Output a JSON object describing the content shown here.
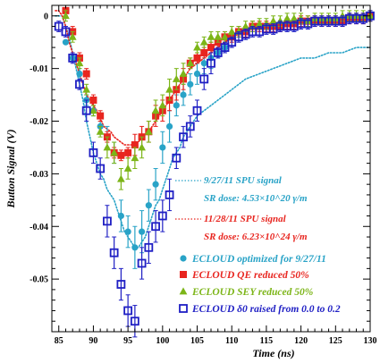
{
  "chart_data": {
    "type": "scatter",
    "title": "",
    "xlabel": "Time (ns)",
    "ylabel": "Button Signal (V)",
    "xlim": [
      84,
      130
    ],
    "ylim": [
      -0.06,
      0.002
    ],
    "x_ticks": [
      "85",
      "90",
      "95",
      "100",
      "105",
      "110",
      "115",
      "120",
      "125",
      "130"
    ],
    "y_ticks": [
      "0",
      "-0.01",
      "-0.02",
      "-0.03",
      "-0.04",
      "-0.05"
    ],
    "grid": false,
    "legend_placement": "bottom-right",
    "annotations": [
      {
        "id": "sru-0927",
        "text": "9/27/11 SPU signal",
        "color": "#29a3c7"
      },
      {
        "id": "dose-0927",
        "text": "SR dose: 4.53×10^20 γ/m",
        "color": "#29a3c7"
      },
      {
        "id": "sru-1128",
        "text": "11/28/11 SPU signal",
        "color": "#e8251f"
      },
      {
        "id": "dose-1128",
        "text": "SR dose: 6.23×10^24 γ/m",
        "color": "#e8251f"
      }
    ],
    "lines": [
      {
        "color": "#29a3c7",
        "style": "dotted",
        "x": [
          84.5,
          85,
          85.5,
          86,
          86.5,
          87,
          87.5,
          88,
          88.5,
          89,
          89.5,
          90,
          90.5,
          91,
          91.5,
          92,
          92.5,
          93,
          93.5,
          94,
          94.5,
          95,
          95.5,
          96,
          96.5,
          97,
          97.5,
          98,
          98.5,
          99,
          99.5,
          100,
          100.5,
          101,
          101.5,
          102,
          102.5,
          103,
          103.5,
          104,
          104.5,
          105,
          106,
          107,
          108,
          109,
          110,
          112,
          114,
          116,
          118,
          120,
          122,
          124,
          126,
          128,
          130
        ],
        "y": [
          0,
          0,
          0,
          -0.002,
          -0.004,
          -0.007,
          -0.01,
          -0.013,
          -0.016,
          -0.02,
          -0.023,
          -0.026,
          -0.028,
          -0.03,
          -0.031,
          -0.033,
          -0.034,
          -0.035,
          -0.037,
          -0.039,
          -0.041,
          -0.042,
          -0.043,
          -0.044,
          -0.044,
          -0.043,
          -0.042,
          -0.04,
          -0.038,
          -0.036,
          -0.035,
          -0.033,
          -0.031,
          -0.029,
          -0.027,
          -0.026,
          -0.025,
          -0.023,
          -0.022,
          -0.021,
          -0.02,
          -0.019,
          -0.018,
          -0.017,
          -0.016,
          -0.015,
          -0.014,
          -0.012,
          -0.011,
          -0.01,
          -0.009,
          -0.008,
          -0.008,
          -0.007,
          -0.007,
          -0.006,
          -0.006
        ]
      },
      {
        "color": "#e8251f",
        "style": "dotted",
        "x": [
          84.5,
          85,
          85.5,
          86,
          86.5,
          87,
          87.5,
          88,
          88.5,
          89,
          89.5,
          90,
          90.5,
          91,
          91.5,
          92,
          92.5,
          93,
          93.5,
          94,
          94.5,
          95,
          95.5,
          96,
          96.5,
          97,
          97.5,
          98,
          98.5,
          99,
          99.5,
          100,
          100.5,
          101,
          101.5,
          102,
          103,
          104,
          105,
          106,
          107,
          108,
          109,
          110,
          112,
          114,
          116,
          118,
          120,
          122,
          124,
          126,
          128,
          130
        ],
        "y": [
          0.001,
          0.001,
          0,
          -0.002,
          -0.005,
          -0.007,
          -0.009,
          -0.011,
          -0.013,
          -0.015,
          -0.016,
          -0.017,
          -0.018,
          -0.0195,
          -0.021,
          -0.0215,
          -0.022,
          -0.023,
          -0.0235,
          -0.024,
          -0.0245,
          -0.0245,
          -0.0245,
          -0.024,
          -0.024,
          -0.023,
          -0.0225,
          -0.022,
          -0.021,
          -0.02,
          -0.019,
          -0.018,
          -0.017,
          -0.016,
          -0.015,
          -0.014,
          -0.012,
          -0.01,
          -0.009,
          -0.008,
          -0.007,
          -0.006,
          -0.005,
          -0.004,
          -0.003,
          -0.002,
          -0.002,
          -0.002,
          -0.001,
          -0.001,
          -0.001,
          -0.001,
          -0.001,
          -0.001
        ]
      }
    ],
    "series": [
      {
        "name": "ECLOUD optimized for 9/27/11",
        "marker": "circle",
        "color": "#29a3c7",
        "x": [
          86,
          87,
          88,
          89,
          90,
          91,
          92,
          93,
          94,
          95,
          96,
          97,
          98,
          99,
          100,
          101,
          102,
          103,
          104,
          105,
          106,
          107,
          108,
          109
        ],
        "y": [
          -0.005,
          -0.008,
          -0.011,
          -0.016,
          -0.018,
          -0.021,
          -0.023,
          -0.026,
          -0.038,
          -0.041,
          -0.044,
          -0.041,
          -0.036,
          -0.032,
          -0.025,
          -0.021,
          -0.017,
          -0.015,
          -0.013,
          -0.011,
          -0.009,
          -0.008,
          -0.007,
          -0.006
        ],
        "err": [
          0,
          0,
          0.001,
          0.001,
          0.001,
          0.001,
          0.002,
          0.002,
          0.003,
          0.003,
          0.004,
          0.004,
          0.003,
          0.003,
          0.003,
          0.003,
          0.002,
          0.002,
          0.002,
          0.002,
          0.002,
          0.002,
          0.001,
          0.001
        ]
      },
      {
        "name": "ECLOUD QE reduced 50%",
        "marker": "square",
        "color": "#e8251f",
        "x": [
          86,
          87,
          88,
          89,
          90,
          91,
          92,
          93,
          94,
          95,
          96,
          97,
          98,
          99,
          100,
          101,
          102,
          103,
          104,
          105,
          106,
          107,
          108,
          109,
          110,
          111,
          112,
          113,
          114,
          115,
          116,
          117,
          118,
          119,
          120,
          121,
          122,
          123,
          124,
          125,
          126,
          127,
          128,
          129,
          130
        ],
        "y": [
          0.001,
          -0.003,
          -0.008,
          -0.011,
          -0.016,
          -0.019,
          -0.023,
          -0.026,
          -0.0265,
          -0.026,
          -0.0245,
          -0.023,
          -0.022,
          -0.019,
          -0.018,
          -0.016,
          -0.014,
          -0.012,
          -0.009,
          -0.008,
          -0.007,
          -0.006,
          -0.005,
          -0.004,
          -0.004,
          -0.003,
          -0.003,
          -0.002,
          -0.002,
          -0.002,
          -0.002,
          -0.002,
          -0.0015,
          -0.0015,
          -0.001,
          -0.001,
          -0.001,
          -0.001,
          -0.001,
          -0.001,
          -0.001,
          -0.0005,
          -0.0005,
          -0.0005,
          0
        ],
        "err": [
          0.001,
          0.001,
          0.001,
          0.001,
          0.001,
          0.001,
          0.001,
          0.001,
          0.001,
          0.001,
          0.002,
          0.002,
          0.002,
          0.002,
          0.002,
          0.002,
          0.002,
          0.002,
          0.001,
          0.001,
          0.001,
          0.001,
          0.001,
          0.001,
          0.001,
          0.001,
          0.001,
          0.001,
          0.001,
          0.001,
          0.001,
          0.001,
          0.001,
          0.001,
          0.001,
          0.001,
          0.001,
          0.001,
          0.001,
          0.001,
          0.001,
          0.001,
          0.001,
          0.001,
          0.001
        ]
      },
      {
        "name": "ECLOUD SEY reduced 50%",
        "marker": "triangle",
        "color": "#7cb518",
        "x": [
          86,
          87,
          88,
          89,
          90,
          91,
          92,
          93,
          94,
          95,
          96,
          97,
          98,
          99,
          100,
          101,
          102,
          103,
          104,
          105,
          106,
          107,
          108,
          109,
          110,
          111,
          112,
          113,
          114,
          115,
          116,
          117,
          118,
          119,
          120,
          121,
          122,
          123,
          124,
          125,
          126,
          127,
          128,
          129,
          130
        ],
        "y": [
          0,
          -0.004,
          -0.009,
          -0.014,
          -0.018,
          -0.022,
          -0.025,
          -0.026,
          -0.031,
          -0.029,
          -0.027,
          -0.025,
          -0.022,
          -0.018,
          -0.017,
          -0.014,
          -0.012,
          -0.011,
          -0.009,
          -0.006,
          -0.005,
          -0.004,
          -0.004,
          -0.004,
          -0.003,
          -0.003,
          -0.002,
          -0.002,
          -0.0015,
          -0.0015,
          -0.001,
          -0.001,
          -0.0005,
          -0.0005,
          -0.0005,
          -0.001,
          -0.0005,
          -0.0005,
          -0.0005,
          -0.0005,
          0,
          0,
          0,
          0,
          0
        ],
        "err": [
          0.001,
          0.001,
          0.001,
          0.001,
          0.001,
          0.001,
          0.002,
          0.002,
          0.002,
          0.002,
          0.002,
          0.002,
          0.002,
          0.002,
          0.002,
          0.002,
          0.002,
          0.002,
          0.001,
          0.001,
          0.001,
          0.001,
          0.001,
          0.001,
          0.001,
          0.001,
          0.001,
          0.001,
          0.001,
          0.001,
          0.001,
          0.001,
          0.001,
          0.001,
          0.001,
          0.001,
          0.001,
          0.001,
          0.001,
          0.001,
          0.001,
          0.001,
          0.001,
          0.001,
          0.001
        ]
      },
      {
        "name": "ECLOUD δ0 raised from 0.0 to 0.2",
        "marker": "open-square",
        "color": "#1f1fc4",
        "x": [
          85,
          86,
          87,
          88,
          89,
          90,
          91,
          92,
          93,
          94,
          95,
          96,
          97,
          98,
          99,
          100,
          101,
          102,
          103,
          104,
          105,
          106,
          107,
          108,
          109,
          110,
          111,
          112,
          113,
          114,
          115,
          116,
          117,
          118,
          119,
          120,
          121,
          122,
          123,
          124,
          125,
          126,
          127,
          128,
          129,
          130
        ],
        "y": [
          -0.002,
          -0.003,
          -0.008,
          -0.013,
          -0.018,
          -0.026,
          -0.029,
          -0.039,
          -0.045,
          -0.051,
          -0.056,
          -0.058,
          -0.047,
          -0.044,
          -0.04,
          -0.038,
          -0.034,
          -0.027,
          -0.023,
          -0.021,
          -0.018,
          -0.012,
          -0.009,
          -0.007,
          -0.006,
          -0.005,
          -0.004,
          -0.0035,
          -0.003,
          -0.003,
          -0.0025,
          -0.0025,
          -0.002,
          -0.002,
          -0.002,
          -0.0015,
          -0.0015,
          -0.001,
          -0.001,
          -0.001,
          -0.001,
          -0.001,
          -0.0005,
          -0.0005,
          -0.0005,
          0
        ],
        "err": [
          0.001,
          0.001,
          0.001,
          0.001,
          0.002,
          0.002,
          0.002,
          0.003,
          0.003,
          0.003,
          0.003,
          0.003,
          0.003,
          0.003,
          0.003,
          0.003,
          0.003,
          0.002,
          0.002,
          0.002,
          0.002,
          0.002,
          0.002,
          0.001,
          0.001,
          0.001,
          0.001,
          0.001,
          0.001,
          0.001,
          0.001,
          0.001,
          0.001,
          0.001,
          0.001,
          0.001,
          0.001,
          0.001,
          0.001,
          0.001,
          0.001,
          0.001,
          0.001,
          0.001,
          0.001,
          0.001
        ]
      }
    ]
  }
}
